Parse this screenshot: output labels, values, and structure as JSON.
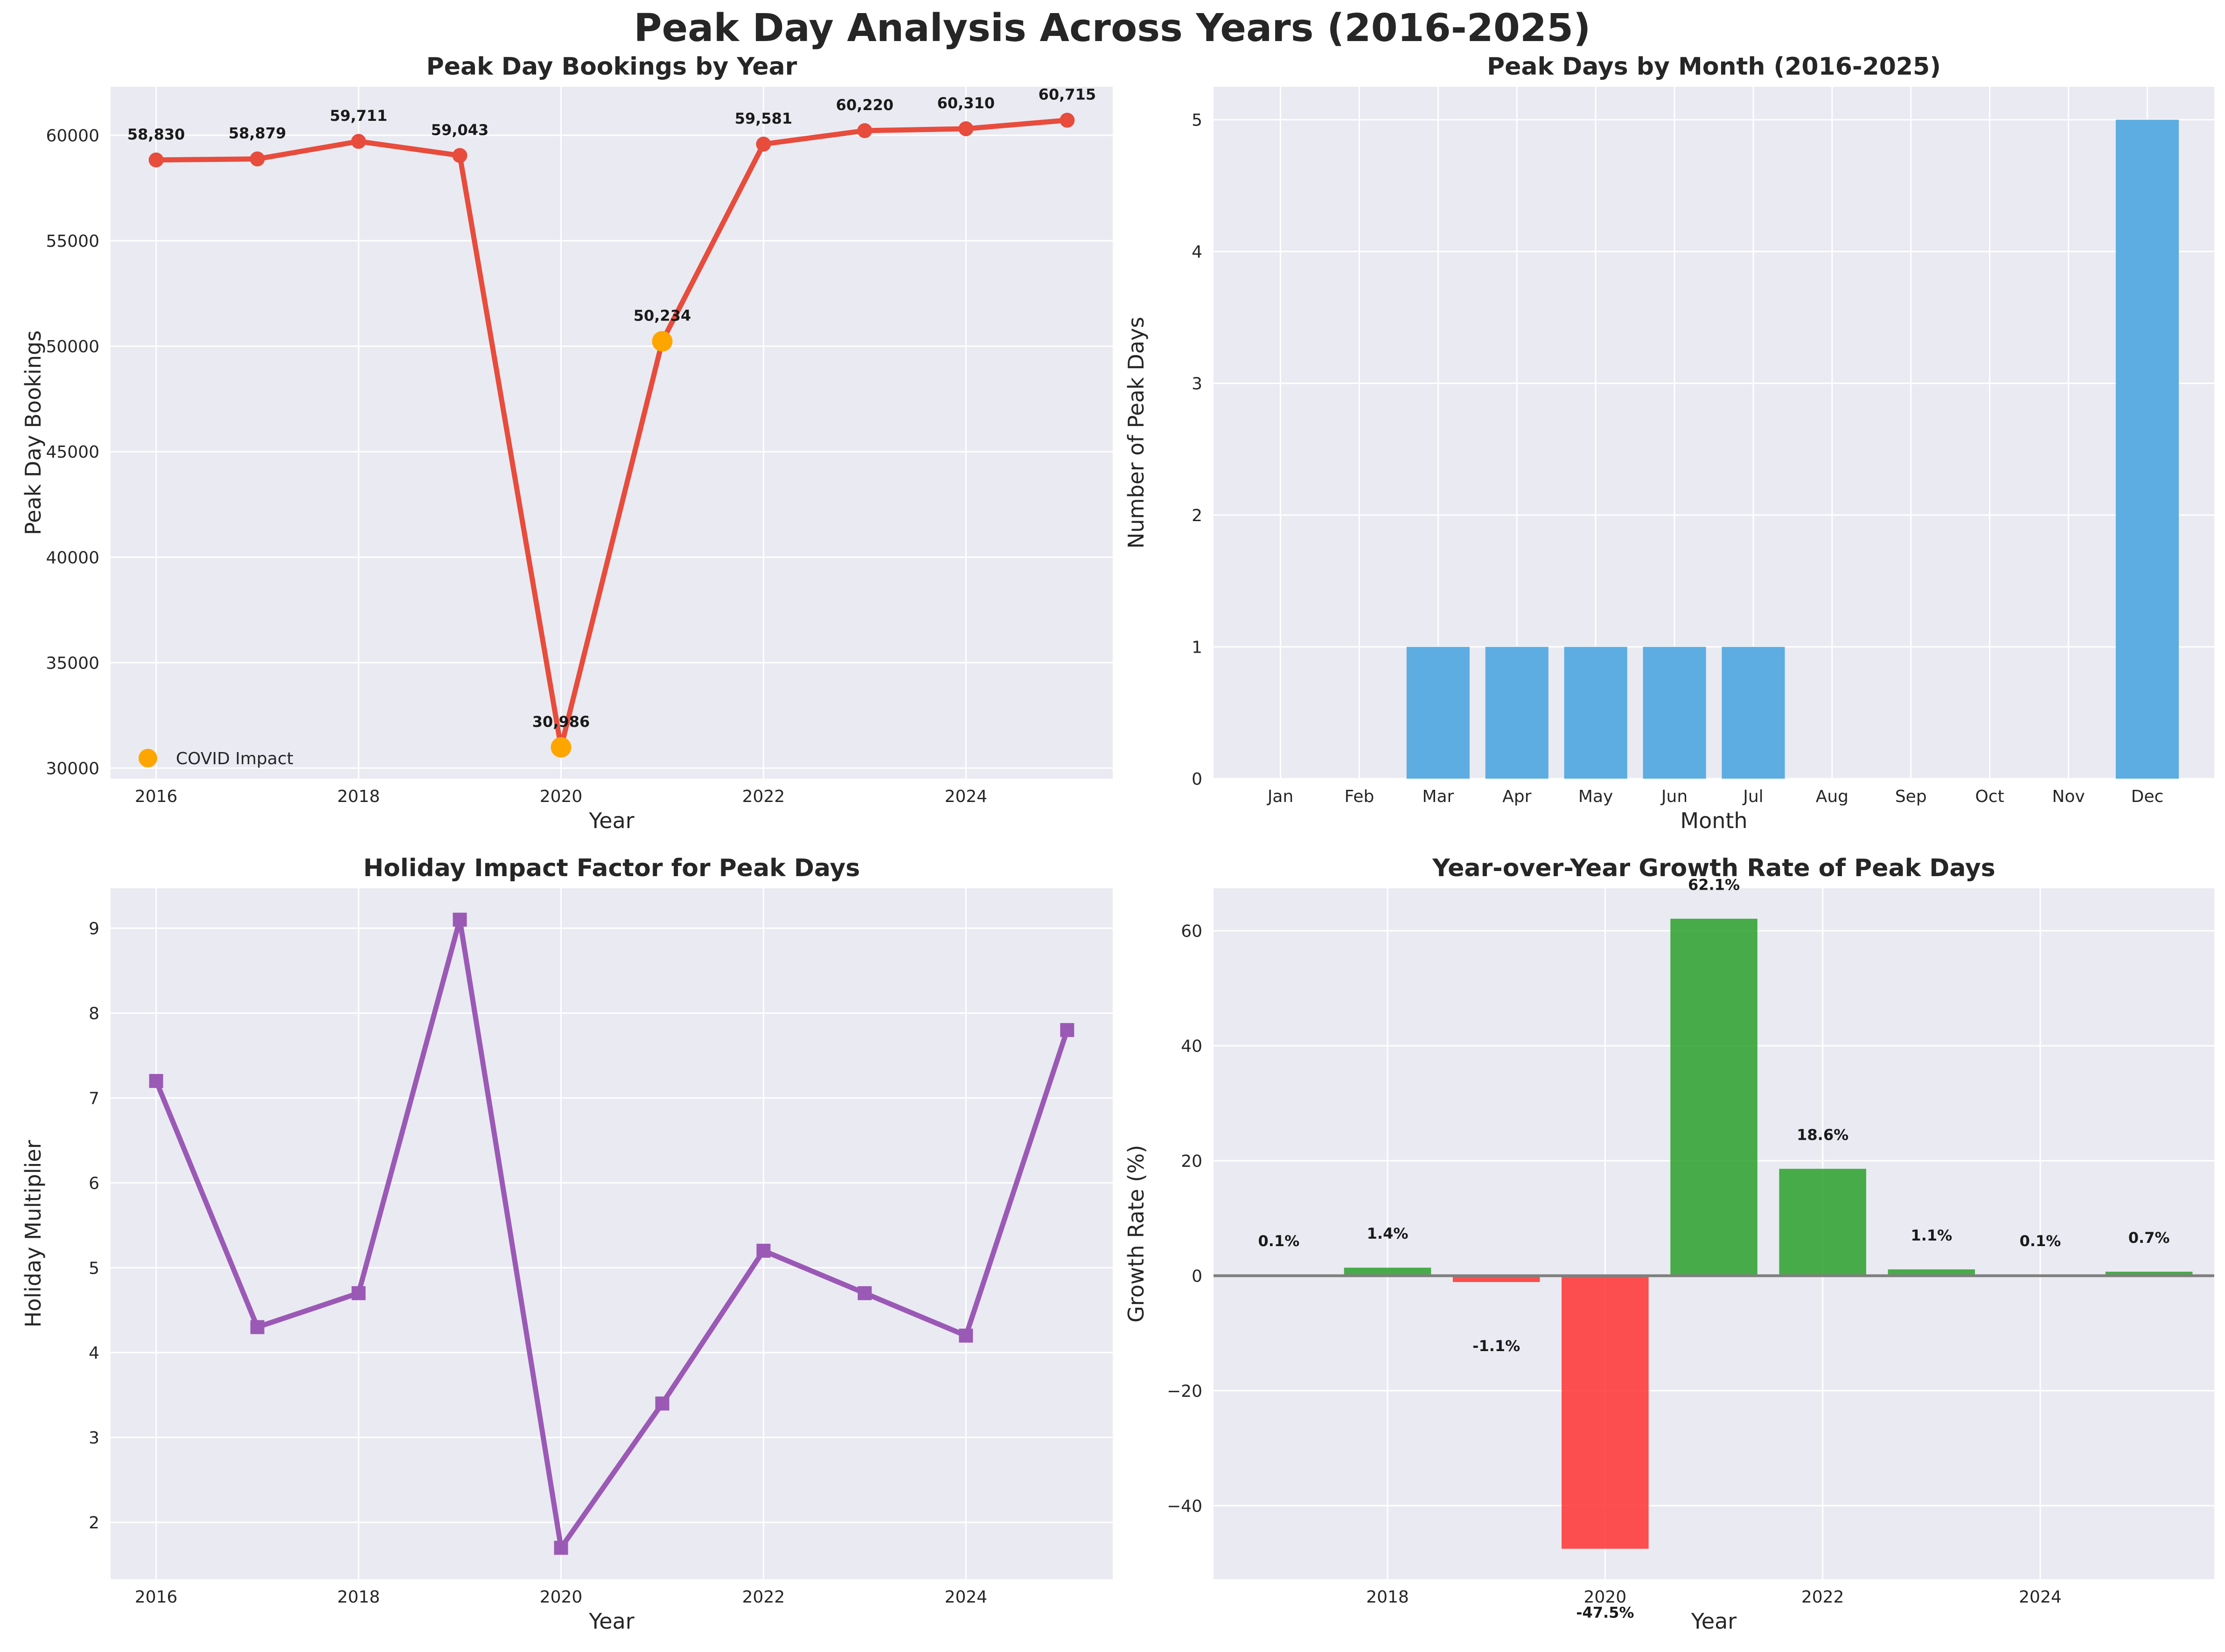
{
  "figure": {
    "suptitle": "Peak Day Analysis Across Years (2016-2025)",
    "background": "#ffffff",
    "panel_background": "#eaeaf2",
    "grid_color": "#ffffff"
  },
  "chart_data": [
    {
      "id": "bookings",
      "type": "line",
      "title": "Peak Day Bookings by Year",
      "xlabel": "Year",
      "ylabel": "Peak Day Bookings",
      "x": [
        2016,
        2017,
        2018,
        2019,
        2020,
        2021,
        2022,
        2023,
        2024,
        2025
      ],
      "y": [
        58830,
        58879,
        59711,
        59043,
        30986,
        50234,
        59581,
        60220,
        60310,
        60715
      ],
      "point_labels": [
        "58,830",
        "58,879",
        "59,711",
        "59,043",
        "30,986",
        "50,234",
        "59,581",
        "60,220",
        "60,310",
        "60,715"
      ],
      "xticks": [
        "2016",
        "2018",
        "2020",
        "2022",
        "2024"
      ],
      "yticks": [
        "30000",
        "35000",
        "40000",
        "45000",
        "50000",
        "55000",
        "60000"
      ],
      "xlim": [
        2015.55,
        2025.45
      ],
      "ylim": [
        29500,
        62300
      ],
      "line_color": "#e74c3c",
      "highlight": {
        "label": "COVID Impact",
        "x": [
          2020,
          2021
        ],
        "color": "#ffa500"
      },
      "legend": "lower-left",
      "grid": true
    },
    {
      "id": "months",
      "type": "bar",
      "title": "Peak Days by Month (2016-2025)",
      "xlabel": "Month",
      "ylabel": "Number of Peak Days",
      "categories": [
        "Jan",
        "Feb",
        "Mar",
        "Apr",
        "May",
        "Jun",
        "Jul",
        "Aug",
        "Sep",
        "Oct",
        "Nov",
        "Dec"
      ],
      "values": [
        0,
        0,
        1,
        1,
        1,
        1,
        1,
        0,
        0,
        0,
        0,
        5
      ],
      "yticks": [
        "0",
        "1",
        "2",
        "3",
        "4",
        "5"
      ],
      "ylim": [
        0,
        5.25
      ],
      "bar_color": "#5dade2",
      "grid": true
    },
    {
      "id": "holiday",
      "type": "line",
      "title": "Holiday Impact Factor for Peak Days",
      "xlabel": "Year",
      "ylabel": "Holiday Multiplier",
      "x": [
        2016,
        2017,
        2018,
        2019,
        2020,
        2021,
        2022,
        2023,
        2024,
        2025
      ],
      "y": [
        7.2,
        4.3,
        4.7,
        9.1,
        1.7,
        3.4,
        5.2,
        4.7,
        4.2,
        7.8
      ],
      "xticks": [
        "2016",
        "2018",
        "2020",
        "2022",
        "2024"
      ],
      "yticks": [
        "2",
        "3",
        "4",
        "5",
        "6",
        "7",
        "8",
        "9"
      ],
      "xlim": [
        2015.55,
        2025.45
      ],
      "ylim": [
        1.33,
        9.47
      ],
      "line_color": "#9b59b6",
      "marker": "square",
      "grid": true
    },
    {
      "id": "growth",
      "type": "bar",
      "title": "Year-over-Year Growth Rate of Peak Days",
      "xlabel": "Year",
      "ylabel": "Growth Rate (%)",
      "x": [
        2017,
        2018,
        2019,
        2020,
        2021,
        2022,
        2023,
        2024,
        2025
      ],
      "values": [
        0.1,
        1.4,
        -1.1,
        -47.5,
        62.1,
        18.6,
        1.1,
        0.1,
        0.7
      ],
      "value_labels": [
        "0.1%",
        "1.4%",
        "-1.1%",
        "-47.5%",
        "62.1%",
        "18.6%",
        "1.1%",
        "0.1%",
        "0.7%"
      ],
      "xticks": [
        "2018",
        "2020",
        "2022",
        "2024"
      ],
      "yticks": [
        "−40",
        "−20",
        "0",
        "20",
        "40",
        "60"
      ],
      "xlim": [
        2016.4,
        2025.6
      ],
      "ylim": [
        -52.8,
        67.4
      ],
      "positive_color": "#2ca02c",
      "negative_color": "#ff3333",
      "zero_line_color": "#7f7f7f",
      "grid": true
    }
  ]
}
